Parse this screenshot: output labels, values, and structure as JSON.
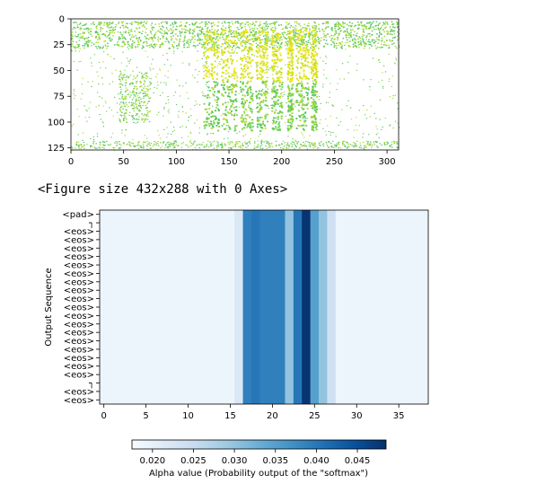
{
  "figure_caption": "<Figure size 432x288 with 0 Axes>",
  "chart_data": [
    {
      "type": "heatmap",
      "description_kind": "spectrogram",
      "x_ticks": [
        0,
        50,
        100,
        150,
        200,
        250,
        300
      ],
      "y_ticks": [
        0,
        25,
        50,
        75,
        100,
        125
      ],
      "xlim": [
        0,
        311
      ],
      "ylim": [
        127,
        0
      ],
      "colormap": "viridis-like (green/yellow on white)",
      "high_energy_columns": [
        {
          "x_start": 125,
          "x_end": 140
        },
        {
          "x_start": 142,
          "x_end": 157
        },
        {
          "x_start": 160,
          "x_end": 172
        },
        {
          "x_start": 175,
          "x_end": 186
        },
        {
          "x_start": 190,
          "x_end": 200
        },
        {
          "x_start": 205,
          "x_end": 210
        },
        {
          "x_start": 213,
          "x_end": 225
        },
        {
          "x_start": 227,
          "x_end": 233
        }
      ],
      "grid": false
    },
    {
      "type": "heatmap",
      "x_ticks": [
        0,
        5,
        10,
        15,
        20,
        25,
        30,
        35
      ],
      "xlim": [
        -0.5,
        38.5
      ],
      "ylabel": "Output Sequence",
      "y_tick_labels": [
        "<pad>",
        "┐",
        "<eos>",
        "<eos>",
        "<eos>",
        "<eos>",
        "<eos>",
        "<eos>",
        "<eos>",
        "<eos>",
        "<eos>",
        "<eos>",
        "<eos>",
        "<eos>",
        "<eos>",
        "<eos>",
        "<eos>",
        "<eos>",
        "<eos>",
        "<eos>",
        "┐",
        "<eos>",
        "<eos>"
      ],
      "colormap": "Blues",
      "colorbar": {
        "ticks": [
          0.02,
          0.025,
          0.03,
          0.035,
          0.04,
          0.045
        ],
        "tick_labels": [
          "0.020",
          "0.025",
          "0.030",
          "0.035",
          "0.040",
          "0.045"
        ],
        "range": [
          0.0175,
          0.0485
        ],
        "label": "Alpha value (Probability output of the \"softmax\")",
        "orientation": "horizontal"
      },
      "column_values": [
        0.019,
        0.019,
        0.019,
        0.019,
        0.019,
        0.019,
        0.019,
        0.019,
        0.019,
        0.019,
        0.019,
        0.019,
        0.019,
        0.019,
        0.019,
        0.019,
        0.022,
        0.039,
        0.04,
        0.039,
        0.039,
        0.039,
        0.03,
        0.04,
        0.048,
        0.035,
        0.03,
        0.024,
        0.019,
        0.019,
        0.019,
        0.019,
        0.019,
        0.019,
        0.019,
        0.019,
        0.019,
        0.019,
        0.019
      ],
      "grid": false
    }
  ]
}
